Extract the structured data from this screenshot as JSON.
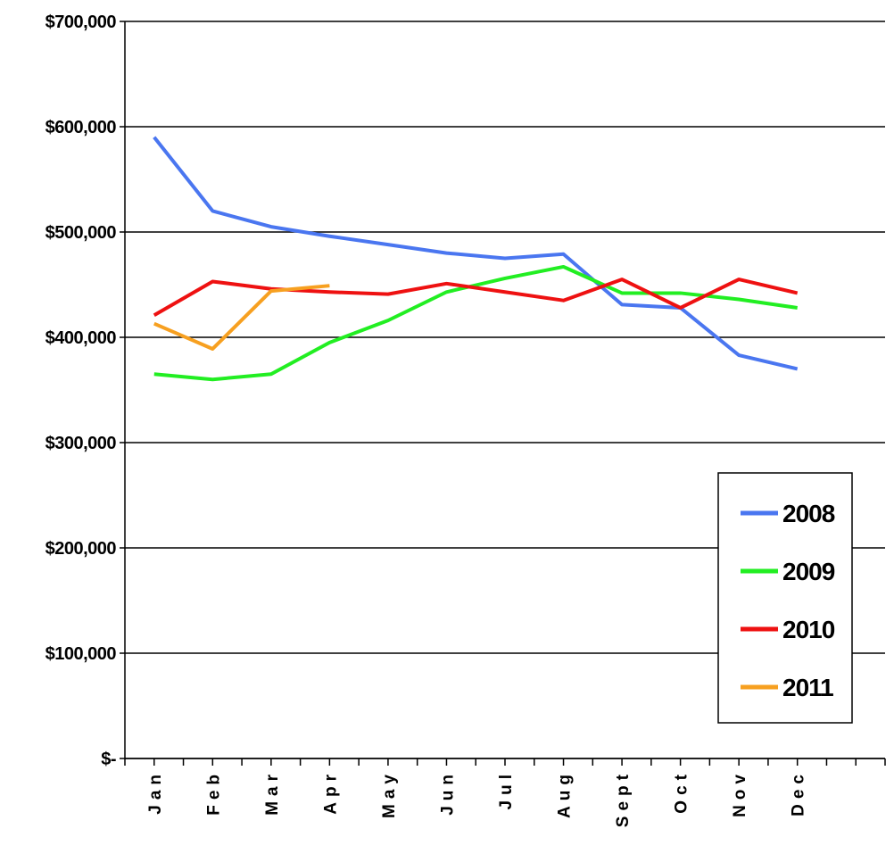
{
  "chart_data": {
    "type": "line",
    "categories": [
      "Jan",
      "Feb",
      "Mar",
      "Apr",
      "May",
      "Jun",
      "Jul",
      "Aug",
      "Sept",
      "Oct",
      "Nov",
      "Dec",
      null
    ],
    "series": [
      {
        "name": "2008",
        "color": "#4a76f0",
        "values": [
          590000,
          520000,
          505000,
          496000,
          488000,
          480000,
          475000,
          479000,
          431000,
          428000,
          383000,
          370000,
          null
        ]
      },
      {
        "name": "2009",
        "color": "#22ee22",
        "values": [
          365000,
          360000,
          365000,
          395000,
          416000,
          443000,
          456000,
          467000,
          442000,
          442000,
          436000,
          428000,
          null
        ]
      },
      {
        "name": "2010",
        "color": "#ee1111",
        "values": [
          421000,
          453000,
          446000,
          443000,
          441000,
          451000,
          443000,
          435000,
          455000,
          428000,
          455000,
          442000,
          null
        ]
      },
      {
        "name": "2011",
        "color": "#f7a020",
        "values": [
          413000,
          389000,
          444000,
          449000,
          null,
          null,
          null,
          null,
          null,
          null,
          null,
          null,
          null
        ]
      }
    ],
    "ylim": [
      0,
      700000
    ],
    "yticks": [
      {
        "value": 0,
        "label": "$-"
      },
      {
        "value": 100000,
        "label": "$100,000"
      },
      {
        "value": 200000,
        "label": "$200,000"
      },
      {
        "value": 300000,
        "label": "$300,000"
      },
      {
        "value": 400000,
        "label": "$400,000"
      },
      {
        "value": 500000,
        "label": "$500,000"
      },
      {
        "value": 600000,
        "label": "$600,000"
      },
      {
        "value": 700000,
        "label": "$700,000"
      }
    ],
    "grid": true,
    "legend": "right"
  }
}
